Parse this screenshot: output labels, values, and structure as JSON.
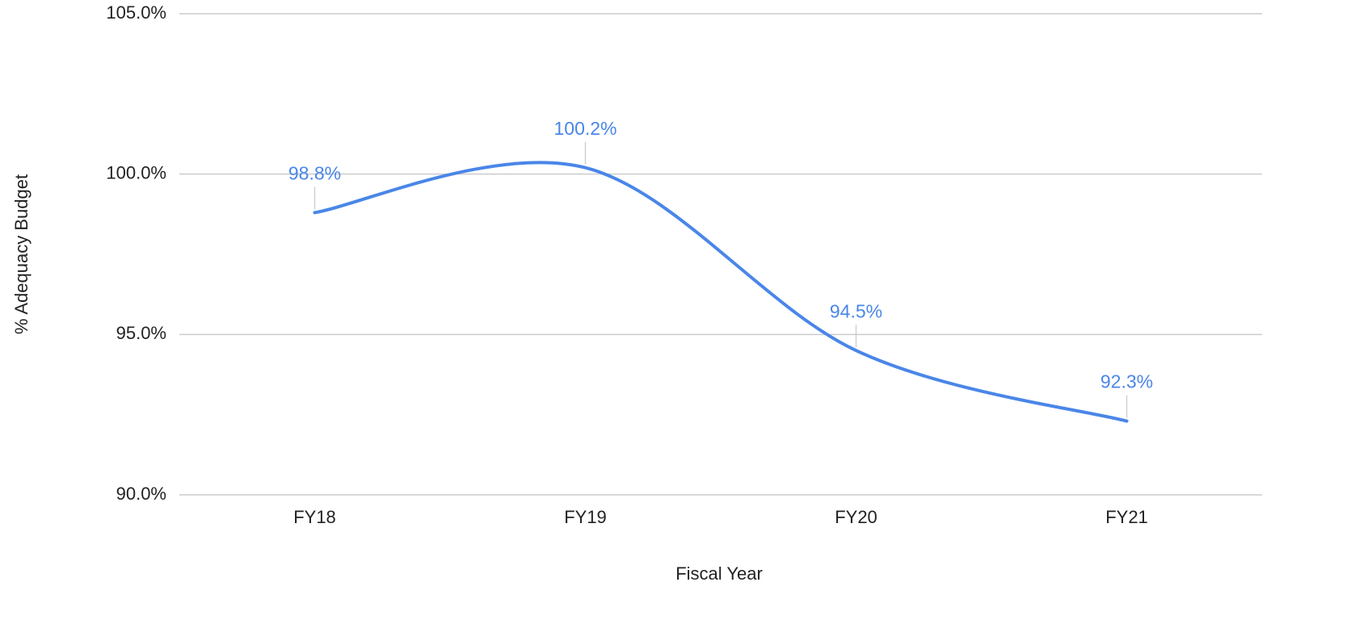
{
  "chart_data": {
    "type": "line",
    "y_axis_label": "% Adequacy Budget",
    "x_axis_label": "Fiscal Year",
    "categories": [
      "FY18",
      "FY19",
      "FY20",
      "FY21"
    ],
    "values": [
      98.8,
      100.2,
      94.5,
      92.3
    ],
    "value_labels": [
      "98.8%",
      "100.2%",
      "94.5%",
      "92.3%"
    ],
    "color": "#4a86e8",
    "smooth": true,
    "ylim": [
      90,
      105
    ],
    "yticks": [
      {
        "value": 90,
        "label": "90.0%"
      },
      {
        "value": 95,
        "label": "95.0%"
      },
      {
        "value": 100,
        "label": "100.0%"
      },
      {
        "value": 105,
        "label": "105.0%"
      }
    ],
    "grid": true
  }
}
